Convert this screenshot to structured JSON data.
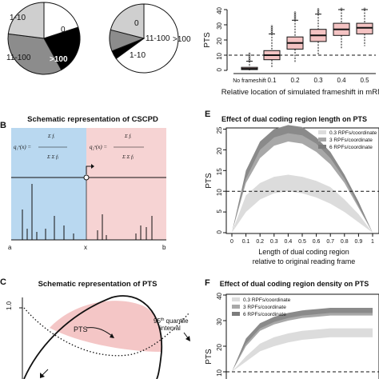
{
  "pies": {
    "left": {
      "slices": [
        {
          "label": "0",
          "percent": 20,
          "color": "#ffffff"
        },
        {
          "label": ">100",
          "percent": 22,
          "color": "#000000"
        },
        {
          "label": "11-100",
          "percent": 35,
          "color": "#8c8c8c"
        },
        {
          "label": "1-10",
          "percent": 23,
          "color": "#cfcfcf"
        }
      ]
    },
    "right": {
      "slices": [
        {
          "label": "0",
          "percent": 65,
          "color": "#ffffff"
        },
        {
          "label": ">100",
          "percent": 4,
          "color": "#000000"
        },
        {
          "label": "11-100",
          "percent": 10,
          "color": "#8c8c8c"
        },
        {
          "label": "1-10",
          "percent": 21,
          "color": "#cfcfcf"
        }
      ]
    }
  },
  "boxplot": {
    "ylabel": "PTS",
    "xlabel": "Relative location of simulated frameshift in mRNA",
    "categories": [
      "No frameshift",
      "0.1",
      "0.2",
      "0.3",
      "0.4",
      "0.5"
    ],
    "yticks": [
      "0",
      "10",
      "20",
      "30",
      "40"
    ],
    "threshold": 10,
    "box_color": "#f4c3c3"
  },
  "panelB": {
    "letter": "B",
    "title": "Schematic representation of CSCPD",
    "left_formula": "q₁ˣ(x) =",
    "right_formula": "q₂ˣ(x) =",
    "axis_labels": [
      "a",
      "x",
      "b"
    ],
    "left_color": "#b9d8f0",
    "right_color": "#f6d3d3"
  },
  "panelE": {
    "letter": "E",
    "title": "Effect of dual coding region length on PTS",
    "ylabel": "PTS",
    "xlabel_line1": "Length of dual coding region",
    "xlabel_line2": "relative to original reading frame",
    "yticks": [
      "0",
      "5",
      "10",
      "15",
      "20",
      "25"
    ],
    "xticks": [
      "0",
      "0.1",
      "0.2",
      "0.3",
      "0.4",
      "0.5",
      "0.6",
      "0.7",
      "0.8",
      "0.9",
      "1"
    ],
    "legend": [
      "0.3 RPFs/coordinate",
      "3 RPFs/coordinate",
      "6 RPFs/coordinate"
    ]
  },
  "panelC": {
    "letter": "C",
    "title": "Schematic representation of PTS",
    "y_tick": "1.0",
    "pts_label": "PTS",
    "quantile_sup": "th",
    "quantile_pre": "95",
    "quantile_line1": "quantile",
    "quantile_line2": "interval"
  },
  "panelF": {
    "letter": "F",
    "title": "Effect of dual coding region density on PTS",
    "ylabel": "PTS",
    "yticks": [
      "10",
      "20",
      "30",
      "40"
    ],
    "legend": [
      "0.3 RPFs/coordinate",
      "3 RPFs/coordinate",
      "6 RPFs/coordinate"
    ]
  },
  "chart_data": [
    {
      "type": "pie",
      "labels": [
        "0",
        ">100",
        "11-100",
        "1-10"
      ],
      "values": [
        20,
        22,
        35,
        23
      ]
    },
    {
      "type": "pie",
      "labels": [
        "0",
        ">100",
        "11-100",
        "1-10"
      ],
      "values": [
        65,
        4,
        10,
        21
      ]
    },
    {
      "type": "box",
      "categories": [
        "No frameshift",
        "0.1",
        "0.2",
        "0.3",
        "0.4",
        "0.5"
      ],
      "boxes": [
        {
          "low": 0,
          "q1": 0.5,
          "median": 1,
          "q3": 2,
          "high": 6
        },
        {
          "low": 2,
          "q1": 7,
          "median": 10,
          "q3": 13,
          "high": 24
        },
        {
          "low": 5,
          "q1": 14,
          "median": 18,
          "q3": 22,
          "high": 33
        },
        {
          "low": 10,
          "q1": 19,
          "median": 23,
          "q3": 27,
          "high": 37
        },
        {
          "low": 14,
          "q1": 23,
          "median": 27,
          "q3": 31,
          "high": 40
        },
        {
          "low": 16,
          "q1": 24,
          "median": 28,
          "q3": 31,
          "high": 40
        }
      ],
      "ylabel": "PTS",
      "xlabel": "Relative location of simulated frameshift in mRNA",
      "ylim": [
        0,
        40
      ]
    },
    {
      "type": "area",
      "x": [
        0,
        0.1,
        0.2,
        0.3,
        0.4,
        0.5,
        0.6,
        0.7,
        0.8,
        0.9,
        1
      ],
      "series": [
        {
          "name": "0.3 RPFs/coordinate",
          "lower": [
            0,
            5,
            8,
            9.5,
            10,
            9.5,
            8.5,
            7,
            5,
            2.5,
            0
          ],
          "upper": [
            0,
            9,
            12,
            13.5,
            14,
            13.5,
            12.5,
            11,
            8,
            4.5,
            0
          ]
        },
        {
          "name": "3 RPFs/coordinate",
          "lower": [
            0,
            12,
            18,
            21,
            22,
            21.5,
            19.5,
            16.5,
            12,
            6,
            0
          ],
          "upper": [
            0,
            14,
            21,
            23.5,
            24.5,
            24,
            22,
            18.5,
            13.5,
            7,
            0
          ]
        },
        {
          "name": "6 RPFs/coordinate",
          "lower": [
            0,
            13,
            20,
            23,
            24,
            23.5,
            21.5,
            18,
            13,
            6.5,
            0
          ],
          "upper": [
            0,
            15,
            22,
            25,
            26,
            25.5,
            23,
            19.5,
            14,
            7.5,
            0
          ]
        }
      ],
      "ylabel": "PTS",
      "ylim": [
        0,
        27
      ],
      "threshold": 10
    },
    {
      "type": "area",
      "x": [
        0,
        0.1,
        0.2,
        0.3,
        0.4,
        0.5,
        0.6,
        0.7,
        0.8,
        0.9,
        1
      ],
      "series": [
        {
          "name": "0.3 RPFs/coordinate",
          "lower": [
            10,
            14,
            18,
            20,
            21.5,
            22.5,
            23,
            23.5,
            23.5,
            23.5,
            23.5
          ],
          "upper": [
            10,
            16,
            21,
            23.5,
            25,
            26,
            26.5,
            27,
            27,
            27,
            27
          ]
        },
        {
          "name": "3 RPFs/coordinate",
          "lower": [
            10,
            20,
            26,
            28.5,
            30,
            31,
            31.5,
            32,
            32,
            32,
            32
          ],
          "upper": [
            10,
            22,
            28,
            30.5,
            32,
            33,
            33.5,
            34,
            34,
            34,
            34
          ]
        },
        {
          "name": "6 RPFs/coordinate",
          "lower": [
            10,
            21,
            27,
            29.5,
            31,
            32,
            32.5,
            33,
            33,
            33,
            33
          ],
          "upper": [
            10,
            23,
            29,
            31.5,
            33,
            34,
            34.5,
            35,
            35,
            35,
            35
          ]
        }
      ],
      "ylabel": "PTS",
      "ylim": [
        10,
        40
      ]
    }
  ]
}
